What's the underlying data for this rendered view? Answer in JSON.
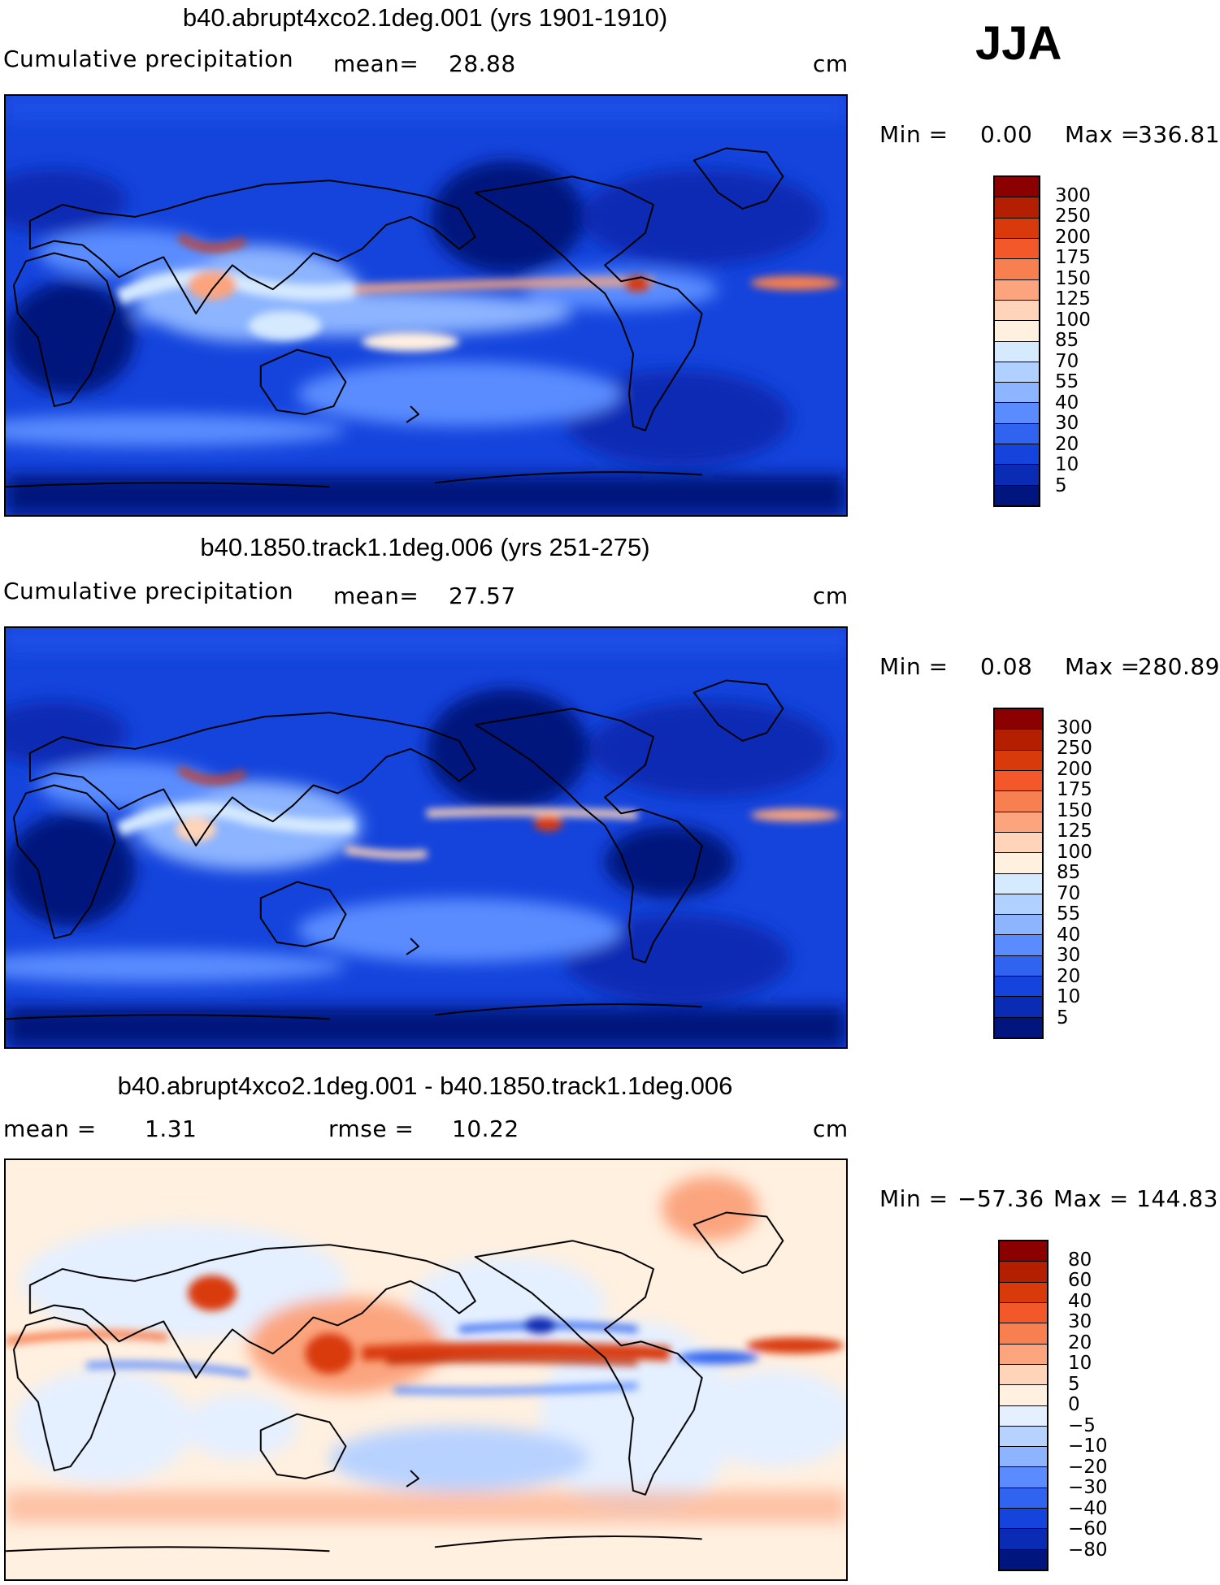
{
  "season": "JJA",
  "panels": [
    {
      "title": "b40.abrupt4xco2.1deg.001 (yrs 1901-1910)",
      "left_label": "Cumulative precipitation",
      "mid_label": "mean=",
      "mid_value": "28.88",
      "units": "cm",
      "min_label": "Min =",
      "min_value": "0.00",
      "max_label": "Max =",
      "max_value": "336.81",
      "colorbar": {
        "colors": [
          "#8b0000",
          "#b31f00",
          "#d93a0c",
          "#f2582a",
          "#f77f50",
          "#fba47e",
          "#ffd4b8",
          "#fff0e0",
          "#d6eaff",
          "#b0d0ff",
          "#8cb4ff",
          "#5a8cff",
          "#2f63f0",
          "#1444dc",
          "#0a2bb4",
          "#00157d"
        ],
        "labels": [
          "300",
          "250",
          "200",
          "175",
          "150",
          "125",
          "100",
          "85",
          "70",
          "55",
          "40",
          "30",
          "20",
          "10",
          "5"
        ]
      }
    },
    {
      "title": "b40.1850.track1.1deg.006 (yrs 251-275)",
      "left_label": "Cumulative precipitation",
      "mid_label": "mean=",
      "mid_value": "27.57",
      "units": "cm",
      "min_label": "Min =",
      "min_value": "0.08",
      "max_label": "Max =",
      "max_value": "280.89",
      "colorbar": {
        "colors": [
          "#8b0000",
          "#b31f00",
          "#d93a0c",
          "#f2582a",
          "#f77f50",
          "#fba47e",
          "#ffd4b8",
          "#fff0e0",
          "#d6eaff",
          "#b0d0ff",
          "#8cb4ff",
          "#5a8cff",
          "#2f63f0",
          "#1444dc",
          "#0a2bb4",
          "#00157d"
        ],
        "labels": [
          "300",
          "250",
          "200",
          "175",
          "150",
          "125",
          "100",
          "85",
          "70",
          "55",
          "40",
          "30",
          "20",
          "10",
          "5"
        ]
      }
    },
    {
      "title": "b40.abrupt4xco2.1deg.001 - b40.1850.track1.1deg.006",
      "left_label": "mean =",
      "left_value": "1.31",
      "mid_label": "rmse =",
      "mid_value": "10.22",
      "units": "cm",
      "min_label": "Min =",
      "min_value": "−57.36",
      "max_label": "Max =",
      "max_value": "144.83",
      "colorbar": {
        "colors": [
          "#8b0000",
          "#b31f00",
          "#d93a0c",
          "#f2582a",
          "#f77f50",
          "#fba47e",
          "#ffd4b8",
          "#fff0e0",
          "#e4efff",
          "#b8d2ff",
          "#8cb4ff",
          "#5a8cff",
          "#2f63f0",
          "#1444dc",
          "#0a2bb4",
          "#00157d"
        ],
        "labels": [
          "80",
          "60",
          "40",
          "30",
          "20",
          "10",
          "5",
          "0",
          "−5",
          "−10",
          "−20",
          "−30",
          "−40",
          "−60",
          "−80"
        ]
      }
    }
  ]
}
